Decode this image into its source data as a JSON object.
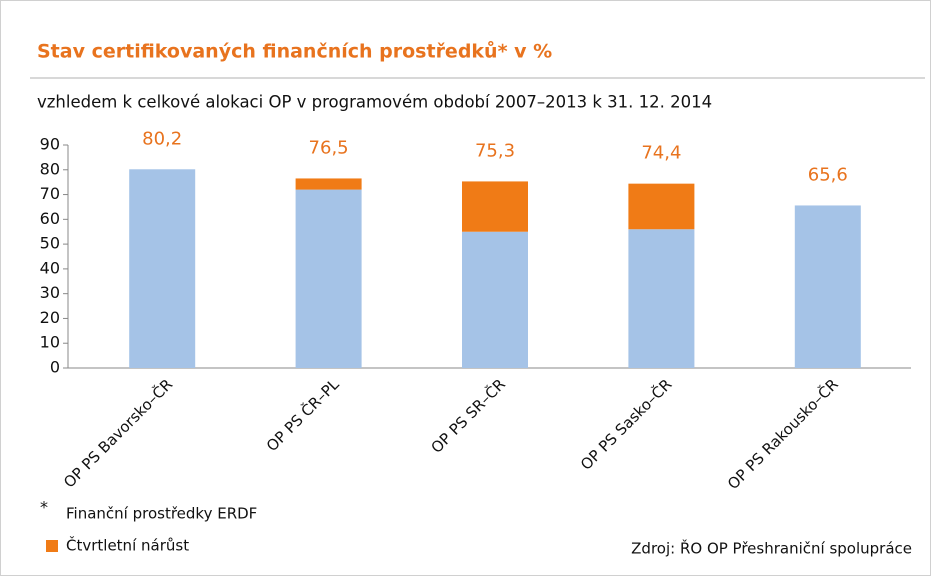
{
  "chart_data": {
    "type": "stacked_bar",
    "title": "Stav certifikovaných finančních prostředků* v %",
    "subtitle": "vzhledem k celkové alokaci OP v programovém období 2007–2013 k 31. 12. 2014",
    "categories": [
      "OP PS Bavorsko–ČR",
      "OP PS ČR–PL",
      "OP PS SR–ČR",
      "OP PS Sasko–ČR",
      "OP PS Rakousko–ČR"
    ],
    "series": [
      {
        "name": "Finanční prostředky ERDF",
        "color": "#a5c3e7",
        "values": [
          80.2,
          72,
          55,
          56,
          65.6
        ]
      },
      {
        "name": "Čtvrtletní nárůst",
        "color": "#f07b16",
        "values": [
          0,
          4.5,
          20.3,
          18.4,
          0
        ]
      }
    ],
    "totals": [
      80.2,
      76.5,
      75.3,
      74.4,
      65.6
    ],
    "total_labels": [
      "80,2",
      "76,5",
      "75,3",
      "74,4",
      "65,6"
    ],
    "footnote_mark": "*",
    "source": "Zdroj: ŘO OP Přeshraniční spolupráce",
    "ylim": [
      0,
      90
    ],
    "yticks": [
      0,
      10,
      20,
      30,
      40,
      50,
      60,
      70,
      80,
      90
    ]
  }
}
